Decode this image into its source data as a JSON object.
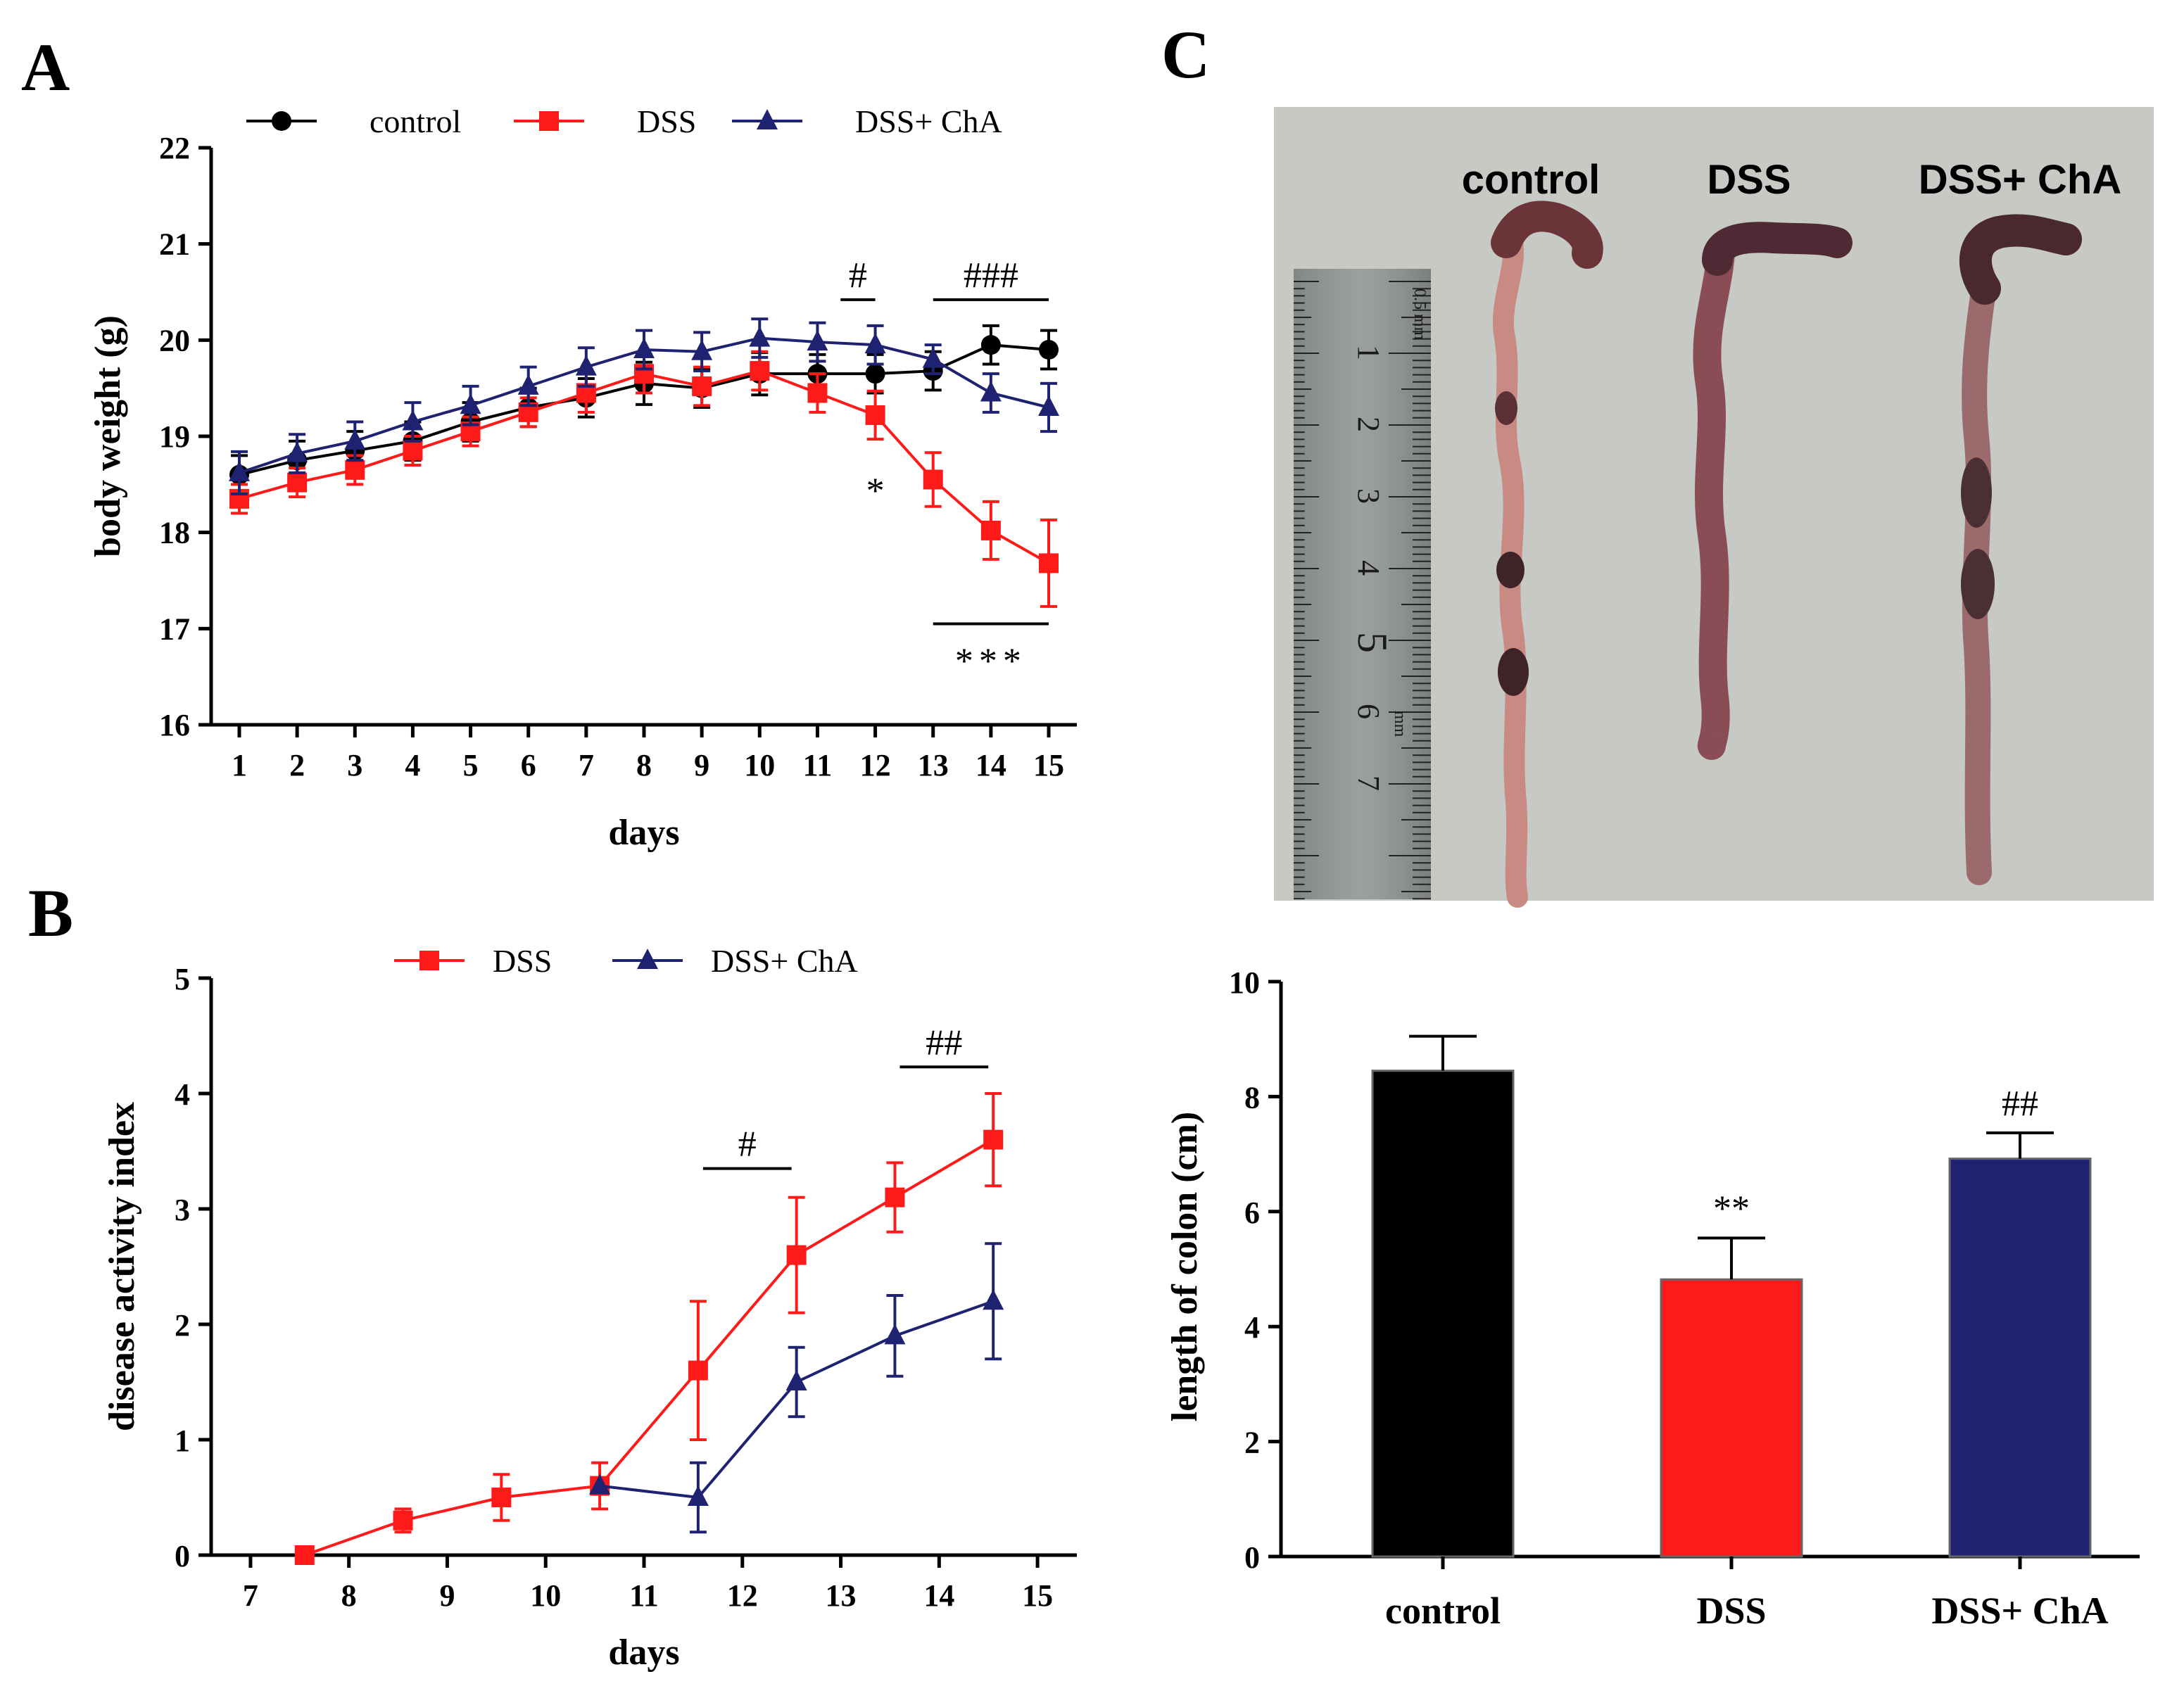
{
  "colors": {
    "control": "#000000",
    "dss": "#ff1a1a",
    "dss_cha": "#1f2270"
  },
  "panel_letters": {
    "a": "A",
    "b": "B",
    "c": "C"
  },
  "photo": {
    "labels": [
      "control",
      "DSS",
      "DSS+ ChA"
    ],
    "ruler_text": {
      "unit_top": "0.5 mm",
      "unit_mid": "mm"
    },
    "ruler_numbers": [
      "1",
      "2",
      "3",
      "4",
      "5",
      "6",
      "7"
    ]
  },
  "chart_data": [
    {
      "panel": "A",
      "type": "line",
      "xlabel": "days",
      "ylabel": "body weight (g)",
      "ylim": [
        16,
        22
      ],
      "yticks": [
        16,
        17,
        18,
        19,
        20,
        21,
        22
      ],
      "x": [
        1,
        2,
        3,
        4,
        5,
        6,
        7,
        8,
        9,
        10,
        11,
        12,
        13,
        14,
        15
      ],
      "series": [
        {
          "name": "control",
          "color_key": "control",
          "marker": "circle",
          "values": [
            18.6,
            18.75,
            18.85,
            18.95,
            19.15,
            19.3,
            19.4,
            19.55,
            19.5,
            19.65,
            19.65,
            19.65,
            19.68,
            19.95,
            19.9
          ],
          "errors": [
            0.2,
            0.2,
            0.2,
            0.2,
            0.2,
            0.2,
            0.2,
            0.22,
            0.2,
            0.22,
            0.2,
            0.2,
            0.2,
            0.2,
            0.2
          ]
        },
        {
          "name": "DSS",
          "color_key": "dss",
          "marker": "square",
          "values": [
            18.35,
            18.52,
            18.65,
            18.85,
            19.05,
            19.25,
            19.45,
            19.65,
            19.52,
            19.68,
            19.45,
            19.22,
            18.55,
            18.02,
            17.68
          ],
          "errors": [
            0.15,
            0.15,
            0.15,
            0.15,
            0.15,
            0.15,
            0.2,
            0.2,
            0.2,
            0.2,
            0.2,
            0.25,
            0.28,
            0.3,
            0.45
          ]
        },
        {
          "name": "DSS+ ChA",
          "color_key": "dss_cha",
          "marker": "triangle",
          "values": [
            18.62,
            18.82,
            18.95,
            19.15,
            19.32,
            19.52,
            19.72,
            19.9,
            19.88,
            20.02,
            19.98,
            19.95,
            19.8,
            19.45,
            19.3
          ],
          "errors": [
            0.22,
            0.2,
            0.2,
            0.2,
            0.2,
            0.2,
            0.2,
            0.2,
            0.2,
            0.2,
            0.2,
            0.2,
            0.15,
            0.2,
            0.25
          ]
        }
      ],
      "annotations": [
        {
          "text": "#",
          "x_from": 11.4,
          "x_to": 12,
          "y": 20.42,
          "kind": "bar_above"
        },
        {
          "text": "###",
          "x_from": 13,
          "x_to": 15,
          "y": 20.42,
          "kind": "bar_above"
        },
        {
          "text": "*",
          "x": 12,
          "y": 18.6,
          "kind": "label"
        },
        {
          "text": "***",
          "x_from": 13,
          "x_to": 15,
          "y": 17.05,
          "kind": "bar_below"
        }
      ]
    },
    {
      "panel": "B",
      "type": "line",
      "xlabel": "days",
      "ylabel": "disease activity index",
      "xlim": [
        6.6,
        15.4
      ],
      "xticks": [
        7,
        8,
        9,
        10,
        11,
        12,
        13,
        14,
        15
      ],
      "ylim": [
        0,
        5
      ],
      "yticks": [
        0,
        1,
        2,
        3,
        4,
        5
      ],
      "series": [
        {
          "name": "DSS",
          "color_key": "dss",
          "marker": "square",
          "x": [
            7.55,
            8.55,
            9.55,
            10.55,
            11.55,
            12.55,
            13.55,
            14.55
          ],
          "values": [
            0,
            0.3,
            0.5,
            0.6,
            1.6,
            2.6,
            3.1,
            3.6
          ],
          "errors": [
            0,
            0.1,
            0.2,
            0.2,
            0.6,
            0.5,
            0.3,
            0.4
          ]
        },
        {
          "name": "DSS+ ChA",
          "color_key": "dss_cha",
          "marker": "triangle",
          "x": [
            10.55,
            11.55,
            12.55,
            13.55,
            14.55
          ],
          "values": [
            0.6,
            0.5,
            1.5,
            1.9,
            2.2
          ],
          "errors": [
            0,
            0.3,
            0.3,
            0.35,
            0.5
          ]
        }
      ],
      "annotations": [
        {
          "text": "#",
          "x_from": 11.6,
          "x_to": 12.5,
          "y": 3.35,
          "kind": "bar_above"
        },
        {
          "text": "##",
          "x_from": 13.6,
          "x_to": 14.5,
          "y": 4.23,
          "kind": "bar_above"
        }
      ]
    },
    {
      "panel": "C",
      "type": "bar",
      "xlabel": "",
      "ylabel": "length of colon (cm)",
      "ylim": [
        0,
        10
      ],
      "yticks": [
        0,
        2,
        4,
        6,
        8,
        10
      ],
      "categories": [
        "control",
        "DSS",
        "DSS+ ChA"
      ],
      "values": [
        8.45,
        4.82,
        6.92
      ],
      "errors": [
        0.6,
        0.72,
        0.45
      ],
      "color_keys": [
        "control",
        "dss",
        "dss_cha"
      ],
      "bar_annotations": [
        "",
        "**",
        "##"
      ]
    }
  ]
}
